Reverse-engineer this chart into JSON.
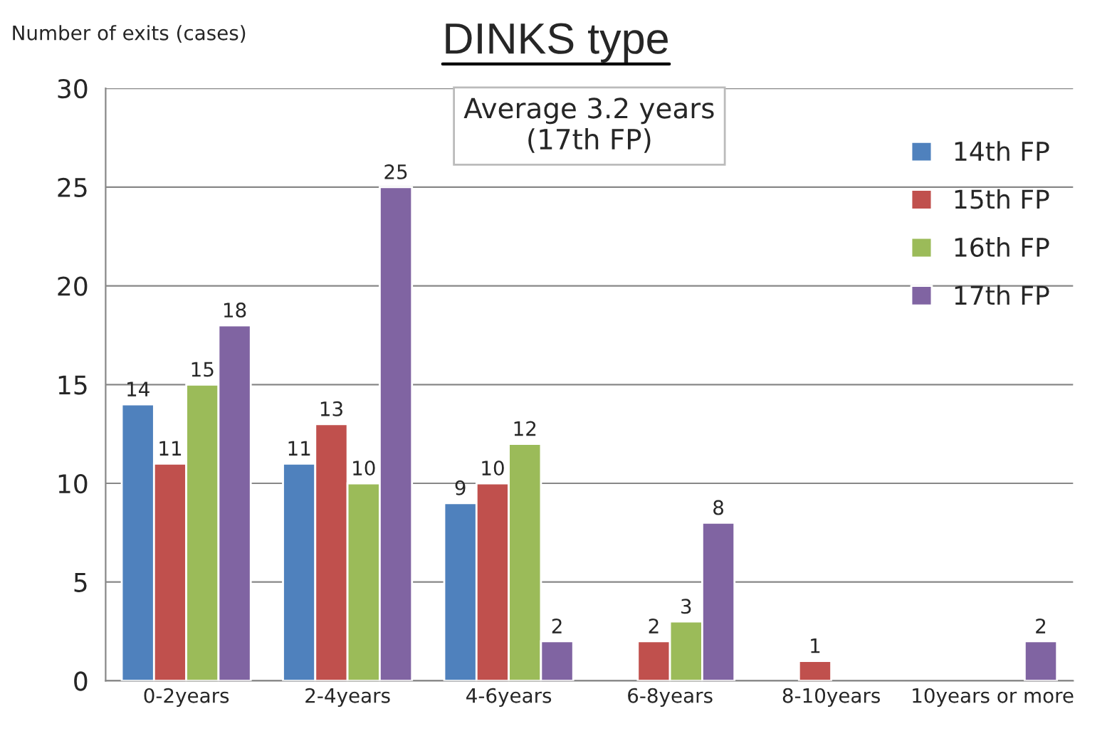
{
  "chart_data": {
    "type": "bar",
    "title": "DINKS type",
    "ylabel": "Number of exits (cases)",
    "annotations": [
      "Average 3.2 years\n(17th FP)"
    ],
    "categories": [
      "0-2years",
      "2-4years",
      "4-6years",
      "6-8years",
      "8-10years",
      "10years or more"
    ],
    "series": [
      {
        "name": "14th FP",
        "color": "#4f81bd",
        "values": [
          14,
          11,
          9,
          null,
          null,
          null
        ]
      },
      {
        "name": "15th FP",
        "color": "#c0504d",
        "values": [
          11,
          13,
          10,
          2,
          1,
          null
        ]
      },
      {
        "name": "16th FP",
        "color": "#9bbb59",
        "values": [
          15,
          10,
          12,
          3,
          null,
          null
        ]
      },
      {
        "name": "17th FP",
        "color": "#8064a2",
        "values": [
          18,
          25,
          2,
          8,
          null,
          2
        ]
      }
    ],
    "ylim": [
      0,
      30
    ],
    "yticks": [
      0,
      5,
      10,
      15,
      20,
      25,
      30
    ],
    "grid": "y",
    "legend": "top right",
    "data_labels": true
  }
}
